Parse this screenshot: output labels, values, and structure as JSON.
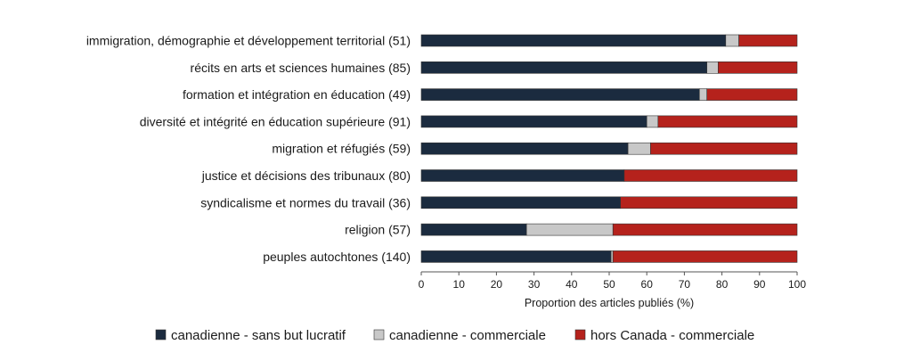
{
  "chart_data": {
    "type": "bar",
    "orientation": "horizontal",
    "stacked": true,
    "xlabel": "Proportion des articles publiés (%)",
    "xlim": [
      0,
      100
    ],
    "xticks": [
      "0",
      "10",
      "20",
      "30",
      "40",
      "50",
      "60",
      "70",
      "80",
      "90",
      "100"
    ],
    "grid": false,
    "legend_position": "bottom",
    "categories": [
      "immigration, démographie et développement territorial (51)",
      "récits en arts et sciences humaines (85)",
      "formation et intégration en éducation (49)",
      "diversité et intégrité en éducation supérieure (91)",
      "migration et réfugiés (59)",
      "justice et décisions des tribunaux (80)",
      "syndicalisme et normes du travail (36)",
      "religion (57)",
      "peuples autochtones (140)"
    ],
    "series": [
      {
        "name": "canadienne - sans but lucratif",
        "color": "#1b2b3f",
        "values": [
          81,
          76,
          74,
          60,
          55,
          54,
          53,
          28,
          50.5
        ]
      },
      {
        "name": "canadienne - commerciale",
        "color": "#c8c8c8",
        "values": [
          3.5,
          3,
          2,
          3,
          6,
          0,
          0,
          23,
          0.5
        ]
      },
      {
        "name": "hors Canada - commerciale",
        "color": "#b5221c",
        "values": [
          15.5,
          21,
          24,
          37,
          39,
          46,
          47,
          49,
          49
        ]
      }
    ]
  }
}
